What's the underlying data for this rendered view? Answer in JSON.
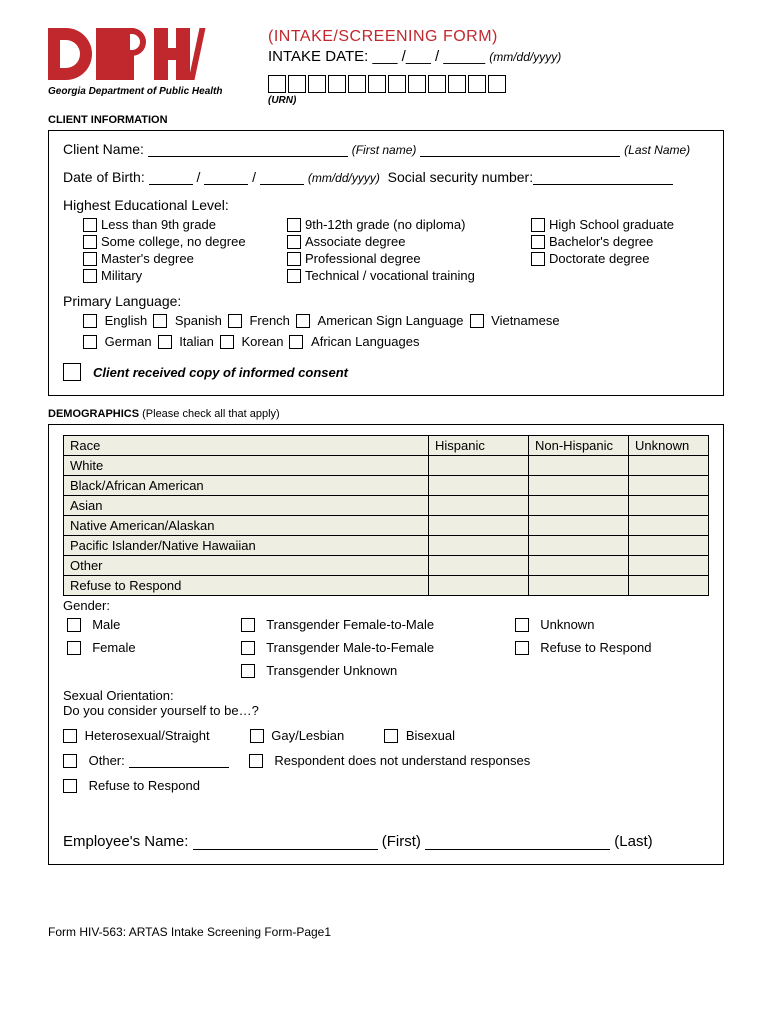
{
  "header": {
    "org": "Georgia Department of Public Health",
    "form_title": "(INTAKE/SCREENING FORM)",
    "intake_date_label": "INTAKE DATE:",
    "date_hint": "(mm/dd/yyyy)",
    "urn_label": "(URN)",
    "urn_box_count": 12
  },
  "sections": {
    "client_info": "CLIENT INFORMATION",
    "demographics": "DEMOGRAPHICS",
    "demo_sub": "(Please check all that apply)"
  },
  "client": {
    "name_label": "Client Name:",
    "first_hint": "(First name)",
    "last_hint": "(Last Name)",
    "dob_label": "Date of Birth:",
    "dob_hint": "(mm/dd/yyyy)",
    "ssn_label": "Social security  number:"
  },
  "edu": {
    "title": "Highest Educational Level:",
    "options": [
      "Less than 9th grade",
      "9th-12th grade (no diploma)",
      "High School graduate",
      "Some college, no degree",
      "Associate degree",
      "Bachelor's degree",
      "Master's degree",
      "Professional degree",
      "Doctorate degree",
      "Military",
      "Technical / vocational training"
    ]
  },
  "lang": {
    "title": "Primary Language:",
    "row1": [
      "English",
      "Spanish",
      "French",
      "American Sign Language",
      "Vietnamese"
    ],
    "row2": [
      "German",
      "Italian",
      "Korean",
      "African Languages"
    ]
  },
  "consent": "Client received copy of informed consent",
  "race": {
    "headers": [
      "Race",
      "Hispanic",
      "Non-Hispanic",
      "Unknown"
    ],
    "rows": [
      "White",
      "Black/African American",
      "Asian",
      "Native American/Alaskan",
      "Pacific Islander/Native Hawaiian",
      "Other",
      "Refuse to Respond"
    ]
  },
  "gender": {
    "title": "Gender:",
    "options": [
      "Male",
      "Transgender Female-to-Male",
      "Unknown",
      "Female",
      "Transgender Male-to-Female",
      "Refuse to Respond",
      "",
      "Transgender Unknown",
      ""
    ]
  },
  "so": {
    "title": "Sexual Orientation:",
    "prompt": "Do you consider yourself to be…?",
    "row1": [
      "Heterosexual/Straight",
      "Gay/Lesbian",
      "Bisexual"
    ],
    "other_label": "Other:",
    "respondent": "Respondent does not understand responses",
    "refuse": "Refuse to Respond"
  },
  "employee": {
    "label": "Employee's Name:",
    "first": "(First)",
    "last": "(Last)"
  },
  "footer": "Form HIV-563:  ARTAS Intake Screening Form-Page1"
}
